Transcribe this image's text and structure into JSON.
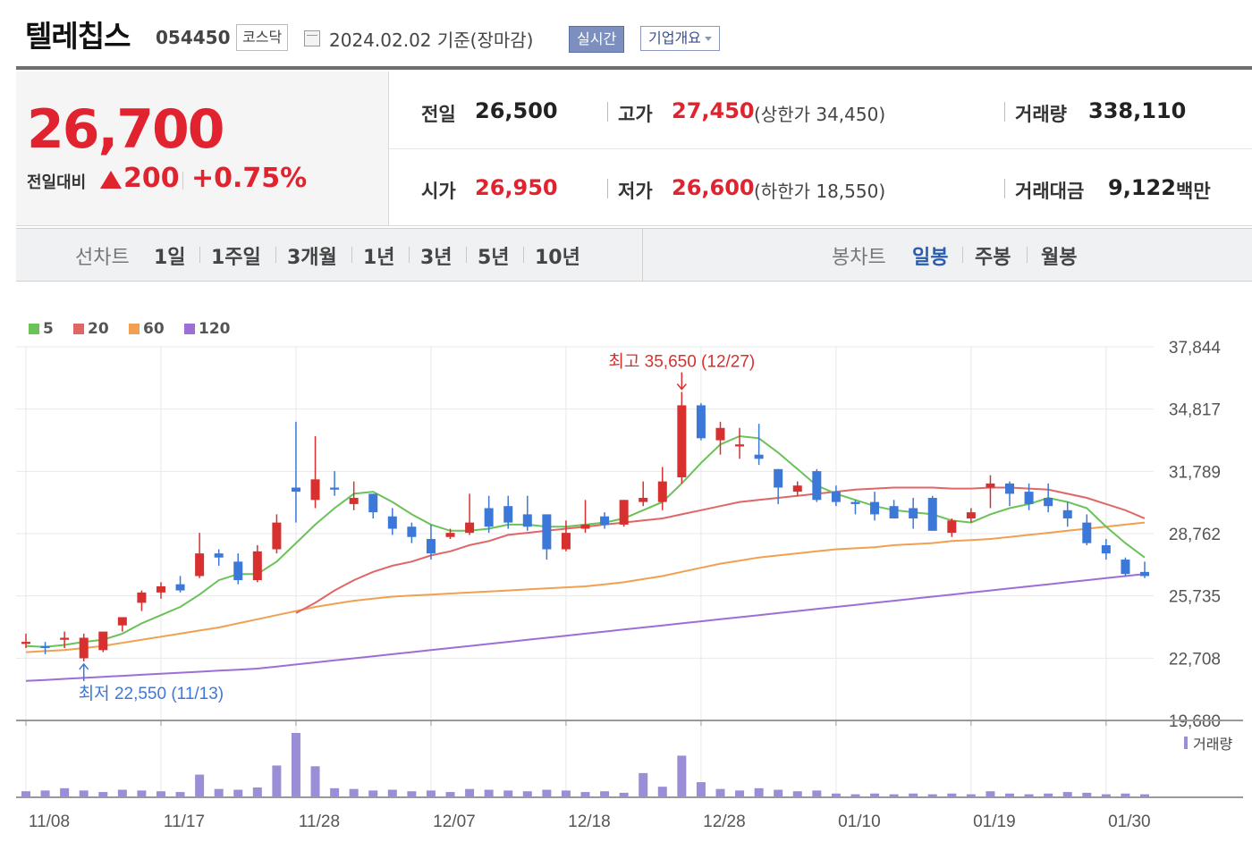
{
  "header": {
    "stock_name": "텔레칩스",
    "stock_code": "054450",
    "market": "코스닥",
    "date_text": "2024.02.02  기준(장마감)",
    "realtime_button": "실시간",
    "overview_button": "기업개요"
  },
  "quote": {
    "price": "26,700",
    "change_label": "전일대비",
    "change_value": "200",
    "change_percent": "+0.75%",
    "prev_close_label": "전일",
    "prev_close": "26,500",
    "high_label": "고가",
    "high": "27,450",
    "upper_limit": "(상한가 34,450)",
    "volume_label": "거래량",
    "volume": "338,110",
    "open_label": "시가",
    "open": "26,950",
    "low_label": "저가",
    "low": "26,600",
    "lower_limit": "(하한가 18,550)",
    "amount_label": "거래대금",
    "amount": "9,122",
    "amount_unit": "백만"
  },
  "period_tabs": {
    "line_label": "선차트",
    "line_tabs": [
      "1일",
      "1주일",
      "3개월",
      "1년",
      "3년",
      "5년",
      "10년"
    ],
    "candle_label": "봉차트",
    "candle_tabs": [
      "일봉",
      "주봉",
      "월봉"
    ],
    "active_candle": "일봉"
  },
  "colors": {
    "up": "#d8302e",
    "down": "#3c78d8",
    "ma5": "#6ac259",
    "ma20": "#e06666",
    "ma60": "#f0a050",
    "ma120": "#9b6fd6",
    "volume": "#9b8ed6"
  },
  "chart_data": {
    "type": "candlestick",
    "legend": [
      "5",
      "20",
      "60",
      "120"
    ],
    "y_ticks": [
      "37,844",
      "34,817",
      "31,789",
      "28,762",
      "25,735",
      "22,708",
      "19,680"
    ],
    "ylim": [
      19680,
      37844
    ],
    "x_ticks": [
      "11/08",
      "11/17",
      "11/28",
      "12/07",
      "12/18",
      "12/28",
      "01/10",
      "01/19",
      "01/30"
    ],
    "x_tick_index": [
      0,
      7,
      14,
      21,
      28,
      35,
      42,
      49,
      56
    ],
    "high_annotation": "최고 35,650 (12/27)",
    "high_index": 34,
    "low_annotation": "최저 22,550 (11/13)",
    "low_index": 3,
    "volume_label": "거래량",
    "candles": [
      [
        23400,
        23900,
        23200,
        23500
      ],
      [
        23300,
        23500,
        22900,
        23200
      ],
      [
        23600,
        24000,
        23200,
        23700
      ],
      [
        22700,
        23900,
        22550,
        23700
      ],
      [
        23100,
        23900,
        23000,
        24000
      ],
      [
        24300,
        24700,
        24000,
        24700
      ],
      [
        25400,
        26000,
        25000,
        25900
      ],
      [
        25900,
        26400,
        25600,
        26200
      ],
      [
        26300,
        26700,
        25900,
        26000
      ],
      [
        26700,
        28800,
        26600,
        27800
      ],
      [
        27800,
        28000,
        27200,
        27600
      ],
      [
        27400,
        27800,
        26300,
        26500
      ],
      [
        26500,
        28200,
        26400,
        27900
      ],
      [
        28000,
        29700,
        27800,
        29300
      ],
      [
        31000,
        34200,
        29300,
        30800
      ],
      [
        30400,
        33500,
        30000,
        31400
      ],
      [
        31000,
        31800,
        30600,
        30900
      ],
      [
        30200,
        31300,
        29900,
        30500
      ],
      [
        30700,
        30700,
        29500,
        29800
      ],
      [
        29600,
        30000,
        28700,
        29000
      ],
      [
        29100,
        29300,
        28300,
        28600
      ],
      [
        28500,
        29200,
        27500,
        27800
      ],
      [
        28600,
        29000,
        28500,
        28800
      ],
      [
        28800,
        30700,
        28700,
        29300
      ],
      [
        30000,
        30600,
        28800,
        29100
      ],
      [
        30100,
        30600,
        29000,
        29300
      ],
      [
        29700,
        30600,
        28900,
        29100
      ],
      [
        29700,
        29700,
        27500,
        28000
      ],
      [
        28000,
        29400,
        27900,
        28800
      ],
      [
        29000,
        30400,
        28800,
        29200
      ],
      [
        29600,
        29800,
        29000,
        29200
      ],
      [
        29200,
        30400,
        29100,
        30400
      ],
      [
        30300,
        31300,
        30100,
        30500
      ],
      [
        30300,
        32000,
        29900,
        31300
      ],
      [
        31500,
        35650,
        31200,
        35000
      ],
      [
        35000,
        35100,
        33300,
        33400
      ],
      [
        33300,
        34200,
        32600,
        33900
      ],
      [
        33000,
        33900,
        32400,
        33100
      ],
      [
        32600,
        34100,
        32100,
        32400
      ],
      [
        31900,
        31900,
        30200,
        31000
      ],
      [
        30800,
        31300,
        30600,
        31100
      ],
      [
        31800,
        31900,
        30300,
        30400
      ],
      [
        30800,
        31100,
        30100,
        30300
      ],
      [
        30300,
        30400,
        29700,
        30200
      ],
      [
        30300,
        30800,
        29400,
        29700
      ],
      [
        30100,
        30400,
        29600,
        29500
      ],
      [
        30000,
        30500,
        29000,
        29500
      ],
      [
        30500,
        30600,
        28900,
        28900
      ],
      [
        28800,
        29500,
        28600,
        29400
      ],
      [
        29500,
        30000,
        29300,
        29800
      ],
      [
        31000,
        31600,
        30000,
        31200
      ],
      [
        31200,
        31300,
        30100,
        30700
      ],
      [
        30800,
        31200,
        29900,
        30200
      ],
      [
        30500,
        31200,
        29800,
        30100
      ],
      [
        29900,
        30300,
        29100,
        29500
      ],
      [
        29300,
        29700,
        28200,
        28300
      ],
      [
        28200,
        28500,
        27500,
        27800
      ],
      [
        27500,
        27600,
        26700,
        26800
      ],
      [
        26900,
        27400,
        26600,
        26700
      ]
    ],
    "volume": [
      8,
      9,
      12,
      9,
      7,
      10,
      9,
      8,
      7,
      30,
      11,
      10,
      13,
      42,
      85,
      41,
      12,
      11,
      9,
      10,
      8,
      9,
      7,
      11,
      10,
      9,
      8,
      10,
      9,
      7,
      8,
      6,
      32,
      14,
      55,
      20,
      11,
      9,
      12,
      10,
      8,
      9,
      5,
      4,
      5,
      4,
      5,
      4,
      5,
      4,
      8,
      5,
      4,
      5,
      7,
      6,
      4,
      5,
      4
    ],
    "ma5": [
      23300,
      23250,
      23350,
      23500,
      23600,
      23900,
      24400,
      24800,
      25200,
      25800,
      26500,
      26800,
      26800,
      27400,
      28300,
      29200,
      30000,
      30700,
      30800,
      30300,
      29700,
      29200,
      28900,
      28900,
      29000,
      29200,
      29200,
      29100,
      29100,
      29200,
      29300,
      29500,
      29900,
      30300,
      31200,
      32200,
      33100,
      33500,
      33400,
      32700,
      31900,
      31100,
      30700,
      30400,
      30100,
      29900,
      29800,
      29700,
      29400,
      29300,
      29700,
      30000,
      30200,
      30500,
      30300,
      30000,
      29100,
      28300,
      27600
    ],
    "ma20": [
      null,
      null,
      null,
      null,
      null,
      null,
      null,
      null,
      null,
      null,
      null,
      null,
      null,
      null,
      24900,
      25400,
      26000,
      26500,
      26900,
      27200,
      27400,
      27700,
      27900,
      28200,
      28400,
      28700,
      28800,
      28900,
      29000,
      29100,
      29200,
      29300,
      29400,
      29500,
      29700,
      29900,
      30100,
      30300,
      30400,
      30500,
      30600,
      30700,
      30800,
      30900,
      30950,
      31000,
      31000,
      31000,
      30950,
      30950,
      31000,
      31000,
      30950,
      30900,
      30700,
      30500,
      30200,
      29900,
      29500
    ],
    "ma60": [
      23000,
      23050,
      23100,
      23200,
      23300,
      23450,
      23600,
      23750,
      23900,
      24050,
      24200,
      24400,
      24600,
      24800,
      25000,
      25200,
      25350,
      25500,
      25600,
      25700,
      25750,
      25800,
      25850,
      25900,
      25950,
      26000,
      26050,
      26100,
      26150,
      26200,
      26300,
      26400,
      26550,
      26700,
      26900,
      27100,
      27300,
      27450,
      27600,
      27700,
      27800,
      27900,
      28000,
      28050,
      28100,
      28200,
      28250,
      28300,
      28400,
      28450,
      28500,
      28600,
      28700,
      28800,
      28900,
      29000,
      29100,
      29200,
      29300
    ],
    "ma120": [
      21600,
      21650,
      21700,
      21750,
      21800,
      21850,
      21900,
      21950,
      22000,
      22050,
      22100,
      22150,
      22200,
      22300,
      22400,
      22500,
      22600,
      22700,
      22800,
      22900,
      23000,
      23100,
      23200,
      23300,
      23400,
      23500,
      23600,
      23700,
      23800,
      23900,
      24000,
      24100,
      24200,
      24300,
      24400,
      24500,
      24600,
      24700,
      24800,
      24900,
      25000,
      25100,
      25200,
      25300,
      25400,
      25500,
      25600,
      25700,
      25800,
      25900,
      26000,
      26100,
      26200,
      26300,
      26400,
      26500,
      26600,
      26700,
      26800
    ]
  }
}
